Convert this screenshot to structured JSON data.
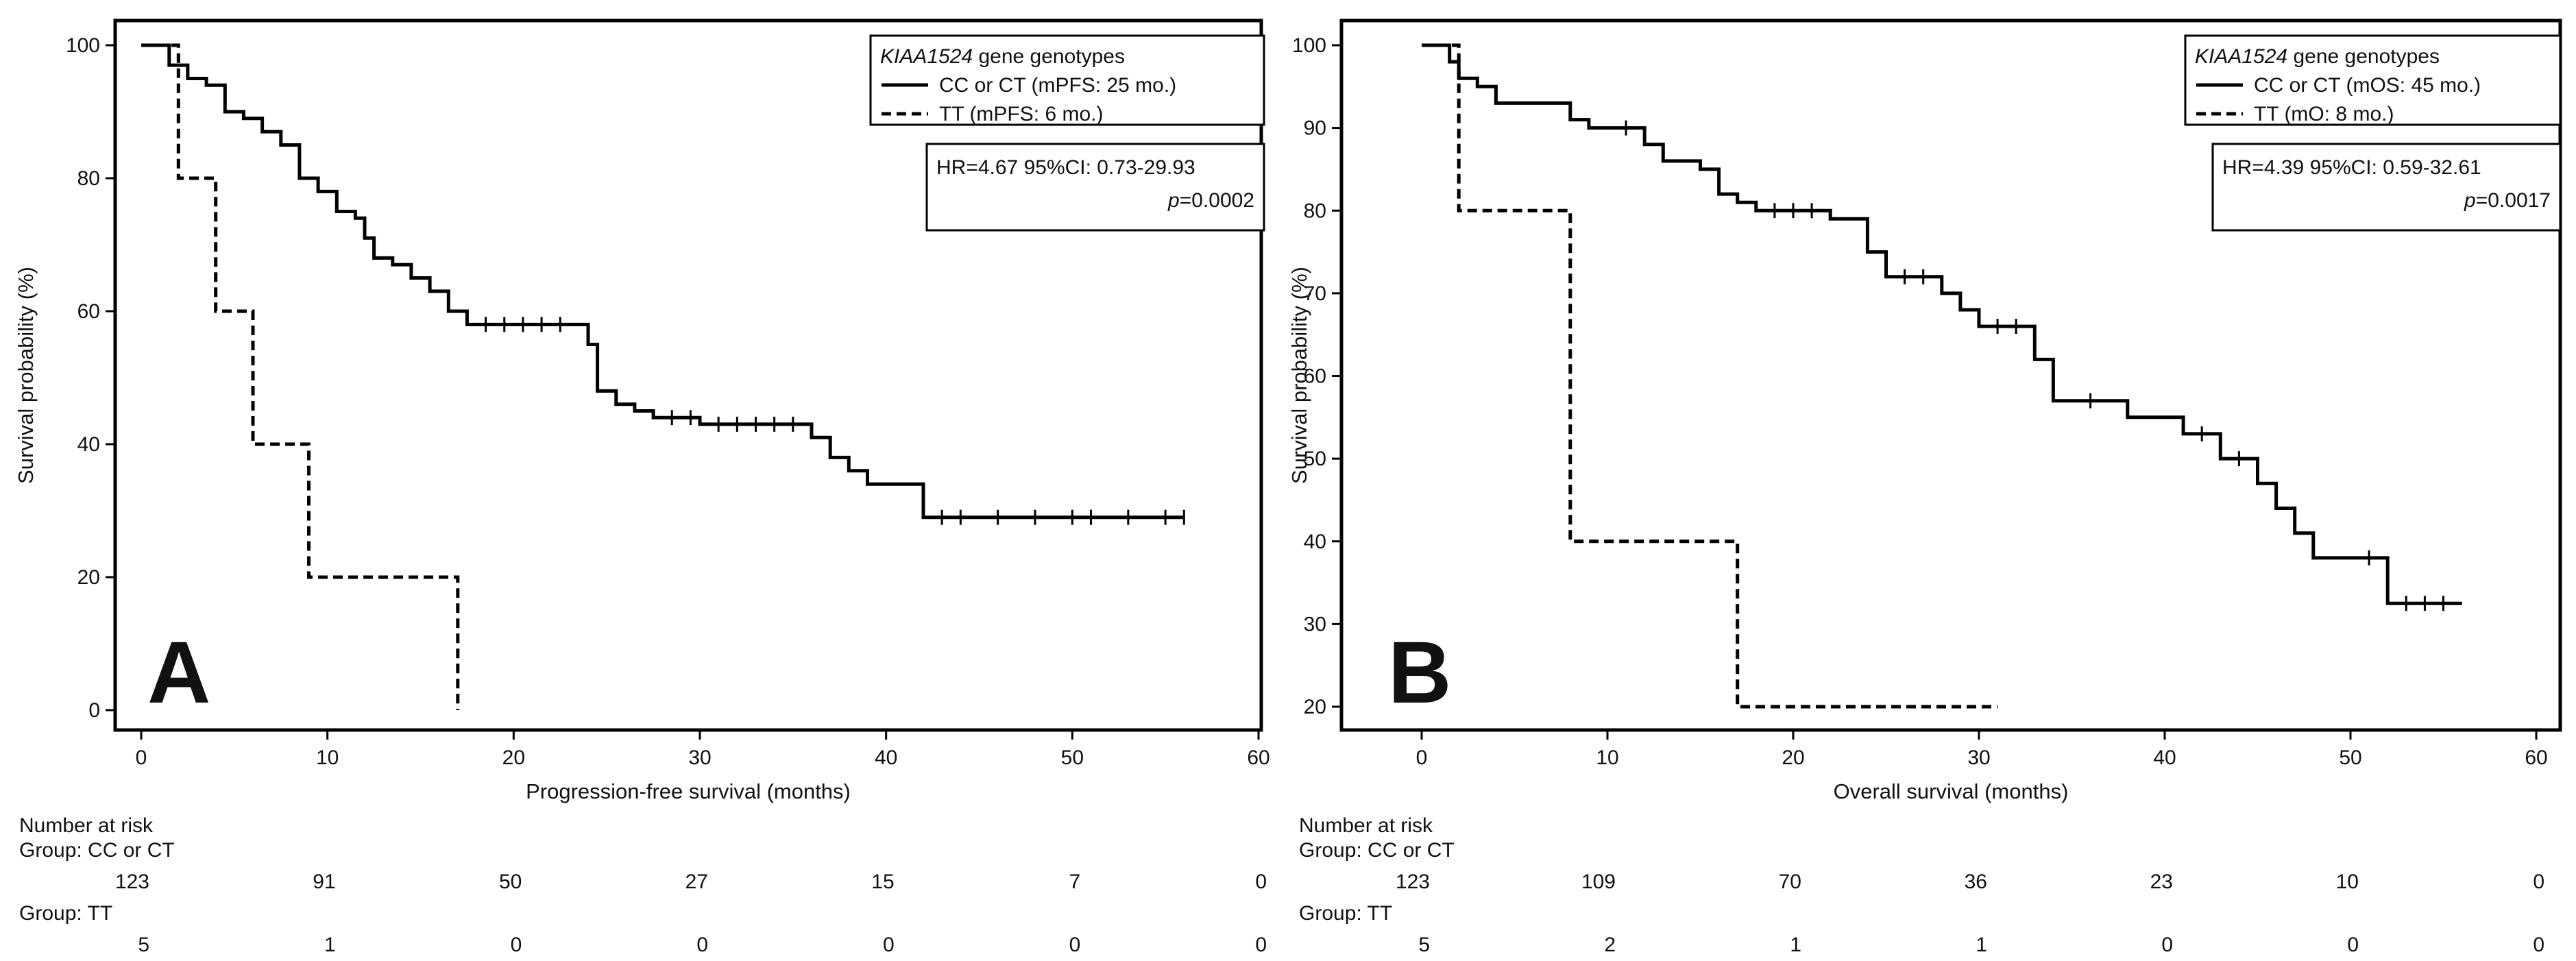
{
  "chart_data": [
    {
      "type": "line",
      "panel_label": "A",
      "xlabel": "Progression-free survival (months)",
      "ylabel": "Survival probability (%)",
      "xlim": [
        0,
        60
      ],
      "ylim": [
        0,
        100
      ],
      "xticks": [
        0,
        10,
        20,
        30,
        40,
        50,
        60
      ],
      "yticks": [
        0,
        20,
        40,
        60,
        80,
        100
      ],
      "legend": {
        "title_italic": "KIAA1524",
        "title_rest": " gene genotypes",
        "entries": [
          "CC or CT (mPFS: 25 mo.)",
          "TT (mPFS: 6 mo.)"
        ],
        "hr_text": "HR=4.67 95%CI: 0.73-29.93",
        "p_label": "p",
        "p_value": "=0.0002",
        "placement": "top-right"
      },
      "series": [
        {
          "name": "CC or CT",
          "style": "solid",
          "points": [
            [
              0,
              100
            ],
            [
              1.5,
              100
            ],
            [
              1.5,
              97
            ],
            [
              2.5,
              97
            ],
            [
              2.5,
              95
            ],
            [
              3.5,
              95
            ],
            [
              3.5,
              94
            ],
            [
              4.5,
              94
            ],
            [
              4.5,
              90
            ],
            [
              5.5,
              90
            ],
            [
              5.5,
              89
            ],
            [
              6.5,
              89
            ],
            [
              6.5,
              87
            ],
            [
              7.5,
              87
            ],
            [
              7.5,
              85
            ],
            [
              8.5,
              85
            ],
            [
              8.5,
              80
            ],
            [
              9.5,
              80
            ],
            [
              9.5,
              78
            ],
            [
              10.5,
              78
            ],
            [
              10.5,
              75
            ],
            [
              11.5,
              75
            ],
            [
              11.5,
              74
            ],
            [
              12,
              74
            ],
            [
              12,
              71
            ],
            [
              12.5,
              71
            ],
            [
              12.5,
              68
            ],
            [
              13.5,
              68
            ],
            [
              13.5,
              67
            ],
            [
              14.5,
              67
            ],
            [
              14.5,
              65
            ],
            [
              15.5,
              65
            ],
            [
              15.5,
              63
            ],
            [
              16.5,
              63
            ],
            [
              16.5,
              60
            ],
            [
              17.5,
              60
            ],
            [
              17.5,
              58
            ],
            [
              24,
              58
            ],
            [
              24,
              55
            ],
            [
              24.5,
              55
            ],
            [
              24.5,
              48
            ],
            [
              25.5,
              48
            ],
            [
              25.5,
              46
            ],
            [
              26.5,
              46
            ],
            [
              26.5,
              45
            ],
            [
              27.5,
              45
            ],
            [
              27.5,
              44
            ],
            [
              30,
              44
            ],
            [
              30,
              43
            ],
            [
              36,
              43
            ],
            [
              36,
              41
            ],
            [
              37,
              41
            ],
            [
              37,
              38
            ],
            [
              38,
              38
            ],
            [
              38,
              36
            ],
            [
              39,
              36
            ],
            [
              39,
              34
            ],
            [
              42,
              34
            ],
            [
              42,
              29
            ],
            [
              56,
              29
            ]
          ],
          "censored": [
            [
              18.5,
              58
            ],
            [
              19.5,
              58
            ],
            [
              20.5,
              58
            ],
            [
              21.5,
              58
            ],
            [
              22.5,
              58
            ],
            [
              28.5,
              44
            ],
            [
              29.5,
              44
            ],
            [
              31,
              43
            ],
            [
              32,
              43
            ],
            [
              33,
              43
            ],
            [
              34,
              43
            ],
            [
              35,
              43
            ],
            [
              43,
              29
            ],
            [
              44,
              29
            ],
            [
              46,
              29
            ],
            [
              48,
              29
            ],
            [
              50,
              29
            ],
            [
              51,
              29
            ],
            [
              53,
              29
            ],
            [
              55,
              29
            ],
            [
              56,
              29
            ]
          ]
        },
        {
          "name": "TT",
          "style": "dashed",
          "points": [
            [
              0,
              100
            ],
            [
              2,
              100
            ],
            [
              2,
              80
            ],
            [
              4,
              80
            ],
            [
              4,
              60
            ],
            [
              6,
              60
            ],
            [
              6,
              40
            ],
            [
              9,
              40
            ],
            [
              9,
              20
            ],
            [
              17,
              20
            ],
            [
              17,
              0
            ]
          ],
          "censored": []
        }
      ],
      "risk_table": {
        "title": "Number at risk",
        "groups": [
          {
            "label": "Group: CC or CT",
            "values": [
              "123",
              "91",
              "50",
              "27",
              "15",
              "7",
              "0"
            ]
          },
          {
            "label": "Group: TT",
            "values": [
              "5",
              "1",
              "0",
              "0",
              "0",
              "0",
              "0"
            ]
          }
        ]
      }
    },
    {
      "type": "line",
      "panel_label": "B",
      "xlabel": "Overall survival (months)",
      "ylabel": "Survival probability (%)",
      "xlim": [
        0,
        60
      ],
      "ylim": [
        20,
        100
      ],
      "xticks": [
        0,
        10,
        20,
        30,
        40,
        50,
        60
      ],
      "yticks": [
        20,
        30,
        40,
        50,
        60,
        70,
        80,
        90,
        100
      ],
      "legend": {
        "title_italic": "KIAA1524",
        "title_rest": " gene genotypes",
        "entries": [
          "CC or CT (mOS: 45 mo.)",
          "TT (mO: 8 mo.)"
        ],
        "hr_text": "HR=4.39 95%CI: 0.59-32.61",
        "p_label": "p",
        "p_value": "=0.0017",
        "placement": "top-right"
      },
      "series": [
        {
          "name": "CC or CT",
          "style": "solid",
          "points": [
            [
              0,
              100
            ],
            [
              1.5,
              100
            ],
            [
              1.5,
              98
            ],
            [
              2,
              98
            ],
            [
              2,
              96
            ],
            [
              3,
              96
            ],
            [
              3,
              95
            ],
            [
              4,
              95
            ],
            [
              4,
              93
            ],
            [
              8,
              93
            ],
            [
              8,
              91
            ],
            [
              9,
              91
            ],
            [
              9,
              90
            ],
            [
              12,
              90
            ],
            [
              12,
              88
            ],
            [
              13,
              88
            ],
            [
              13,
              86
            ],
            [
              15,
              86
            ],
            [
              15,
              85
            ],
            [
              16,
              85
            ],
            [
              16,
              82
            ],
            [
              17,
              82
            ],
            [
              17,
              81
            ],
            [
              18,
              81
            ],
            [
              18,
              80
            ],
            [
              22,
              80
            ],
            [
              22,
              79
            ],
            [
              24,
              79
            ],
            [
              24,
              75
            ],
            [
              25,
              75
            ],
            [
              25,
              72
            ],
            [
              28,
              72
            ],
            [
              28,
              70
            ],
            [
              29,
              70
            ],
            [
              29,
              68
            ],
            [
              30,
              68
            ],
            [
              30,
              66
            ],
            [
              33,
              66
            ],
            [
              33,
              62
            ],
            [
              34,
              62
            ],
            [
              34,
              57
            ],
            [
              38,
              57
            ],
            [
              38,
              55
            ],
            [
              41,
              55
            ],
            [
              41,
              53
            ],
            [
              43,
              53
            ],
            [
              43,
              50
            ],
            [
              45,
              50
            ],
            [
              45,
              47
            ],
            [
              46,
              47
            ],
            [
              46,
              44
            ],
            [
              47,
              44
            ],
            [
              47,
              41
            ],
            [
              48,
              41
            ],
            [
              48,
              38
            ],
            [
              52,
              38
            ],
            [
              52,
              32.5
            ],
            [
              56,
              32.5
            ]
          ],
          "censored": [
            [
              11,
              90
            ],
            [
              19,
              80
            ],
            [
              20,
              80
            ],
            [
              21,
              80
            ],
            [
              24,
              77
            ],
            [
              26,
              72
            ],
            [
              27,
              72
            ],
            [
              30,
              67
            ],
            [
              31,
              66
            ],
            [
              32,
              66
            ],
            [
              36,
              57
            ],
            [
              42,
              53
            ],
            [
              44,
              50
            ],
            [
              46,
              45
            ],
            [
              51,
              38
            ],
            [
              53,
              32.5
            ],
            [
              54,
              32.5
            ],
            [
              55,
              32.5
            ]
          ]
        },
        {
          "name": "TT",
          "style": "dashed",
          "points": [
            [
              0,
              100
            ],
            [
              2,
              100
            ],
            [
              2,
              80
            ],
            [
              8,
              80
            ],
            [
              8,
              40
            ],
            [
              17,
              40
            ],
            [
              17,
              20
            ],
            [
              31,
              20
            ]
          ],
          "censored": []
        }
      ],
      "risk_table": {
        "title": "Number at risk",
        "groups": [
          {
            "label": "Group: CC or CT",
            "values": [
              "123",
              "109",
              "70",
              "36",
              "23",
              "10",
              "0"
            ]
          },
          {
            "label": "Group: TT",
            "values": [
              "5",
              "2",
              "1",
              "1",
              "0",
              "0",
              "0"
            ]
          }
        ]
      }
    }
  ]
}
